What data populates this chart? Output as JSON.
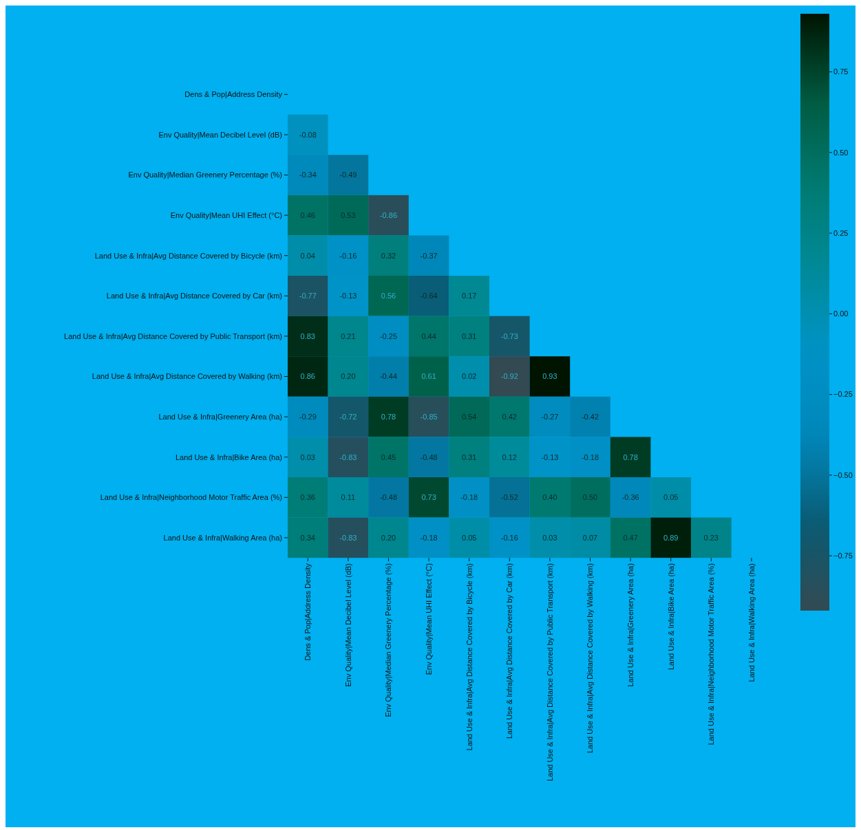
{
  "chart_data": {
    "type": "heatmap",
    "categories": [
      "Dens & Pop|Address Density",
      "Env Quality|Mean Decibel Level (dB)",
      "Env Quality|Median Greenery Percentage (%)",
      "Env Quality|Mean UHI Effect (°C)",
      "Land Use & Infra|Avg Distance Covered by Bicycle (km)",
      "Land Use & Infra|Avg Distance Covered by Car (km)",
      "Land Use & Infra|Avg Distance Covered by Public Transport (km)",
      "Land Use & Infra|Avg Distance Covered by Walking (km)",
      "Land Use & Infra|Greenery Area (ha)",
      "Land Use & Infra|Bike Area (ha)",
      "Land Use & Infra|Neighborhood Motor Traffic Area (%)",
      "Land Use & Infra|Walking Area (ha)"
    ],
    "y_categories": [
      "Dens & Pop|Address Density",
      "Env Quality|Mean Decibel Level (dB)",
      "Env Quality|Median Greenery Percentage (%)",
      "Env Quality|Mean UHI Effect (°C)",
      "Land Use & Infra|Avg Distance Covered by Bicycle (km)",
      "Land Use & Infra|Avg Distance Covered by Car (km)",
      "Land Use & Infra|Avg Distance Covered by Public Transport (km)",
      "Land Use & Infra|Avg Distance Covered by Walking (km)",
      "Land Use & Infra|Greenery Area (ha)",
      "Land Use & Infra|Bike Area (ha)",
      "Land Use & Infra|Neighborhood Motor Traffic Area (%)",
      "Land Use & Infra|Walking Area (ha)"
    ],
    "cells": [
      [
        null,
        null,
        null,
        null,
        null,
        null,
        null,
        null,
        null,
        null,
        null,
        null
      ],
      [
        -0.08,
        null,
        null,
        null,
        null,
        null,
        null,
        null,
        null,
        null,
        null,
        null
      ],
      [
        -0.34,
        -0.49,
        null,
        null,
        null,
        null,
        null,
        null,
        null,
        null,
        null,
        null
      ],
      [
        0.46,
        0.53,
        -0.86,
        null,
        null,
        null,
        null,
        null,
        null,
        null,
        null,
        null
      ],
      [
        0.04,
        -0.16,
        0.32,
        -0.37,
        null,
        null,
        null,
        null,
        null,
        null,
        null,
        null
      ],
      [
        -0.77,
        -0.13,
        0.56,
        -0.64,
        0.17,
        null,
        null,
        null,
        null,
        null,
        null,
        null
      ],
      [
        0.83,
        0.21,
        -0.25,
        0.44,
        0.31,
        -0.73,
        null,
        null,
        null,
        null,
        null,
        null
      ],
      [
        0.86,
        0.2,
        -0.44,
        0.61,
        0.02,
        -0.92,
        0.93,
        null,
        null,
        null,
        null,
        null
      ],
      [
        -0.29,
        -0.72,
        0.78,
        -0.85,
        0.54,
        0.42,
        -0.27,
        -0.42,
        null,
        null,
        null,
        null
      ],
      [
        0.03,
        -0.83,
        0.45,
        -0.48,
        0.31,
        0.12,
        -0.13,
        -0.18,
        0.78,
        null,
        null,
        null
      ],
      [
        0.36,
        0.11,
        -0.48,
        0.73,
        -0.18,
        -0.52,
        0.4,
        0.5,
        -0.36,
        0.05,
        null,
        null
      ],
      [
        0.34,
        -0.83,
        0.2,
        -0.18,
        0.05,
        -0.16,
        0.03,
        0.07,
        0.47,
        0.89,
        0.23,
        null
      ]
    ],
    "cell_labels": [
      [
        null,
        null,
        null,
        null,
        null,
        null,
        null,
        null,
        null,
        null,
        null,
        null
      ],
      [
        "-0.08",
        null,
        null,
        null,
        null,
        null,
        null,
        null,
        null,
        null,
        null,
        null
      ],
      [
        "-0.34",
        "-0.49",
        null,
        null,
        null,
        null,
        null,
        null,
        null,
        null,
        null,
        null
      ],
      [
        "0.46",
        "0.53",
        "-0.86",
        null,
        null,
        null,
        null,
        null,
        null,
        null,
        null,
        null
      ],
      [
        "0.04",
        "-0.16",
        "0.32",
        "-0.37",
        null,
        null,
        null,
        null,
        null,
        null,
        null,
        null
      ],
      [
        "-0.77",
        "-0.13",
        "0.56",
        "-0.64",
        "0.17",
        null,
        null,
        null,
        null,
        null,
        null,
        null
      ],
      [
        "0.83",
        "0.21",
        "-0.25",
        "0.44",
        "0.31",
        "-0.73",
        null,
        null,
        null,
        null,
        null,
        null
      ],
      [
        "0.86",
        "0.20",
        "-0.44",
        "0.61",
        "0.02",
        "-0.92",
        "0.93",
        null,
        null,
        null,
        null,
        null
      ],
      [
        "-0.29",
        "-0.72",
        "0.78",
        "-0.85",
        "0.54",
        "0.42",
        "-0.27",
        "-0.42",
        null,
        null,
        null,
        null
      ],
      [
        "0.03",
        "-0.83",
        "0.45",
        "-0.48",
        "0.31",
        "0.12",
        "-0.13",
        "-0.18",
        "0.78",
        null,
        null,
        null
      ],
      [
        "0.36",
        "0.11",
        "-0.48",
        "0.73",
        "-0.18",
        "-0.52",
        "0.40",
        "0.50",
        "-0.36",
        "0.05",
        null,
        null
      ],
      [
        "0.34",
        "-0.83",
        "0.20",
        "-0.18",
        "0.05",
        "-0.16",
        "0.03",
        "0.07",
        "0.47",
        "0.89",
        "0.23",
        null
      ]
    ],
    "clim": [
      -0.92,
      0.93
    ],
    "cticks": [
      {
        "value": 0.75,
        "label": "0.75"
      },
      {
        "value": 0.5,
        "label": "0.50"
      },
      {
        "value": 0.25,
        "label": "0.25"
      },
      {
        "value": 0,
        "label": "0.00"
      },
      {
        "value": -0.25,
        "label": "−0.25"
      },
      {
        "value": -0.5,
        "label": "−0.50"
      },
      {
        "value": -0.75,
        "label": "−0.75"
      }
    ],
    "data_labels": true
  }
}
